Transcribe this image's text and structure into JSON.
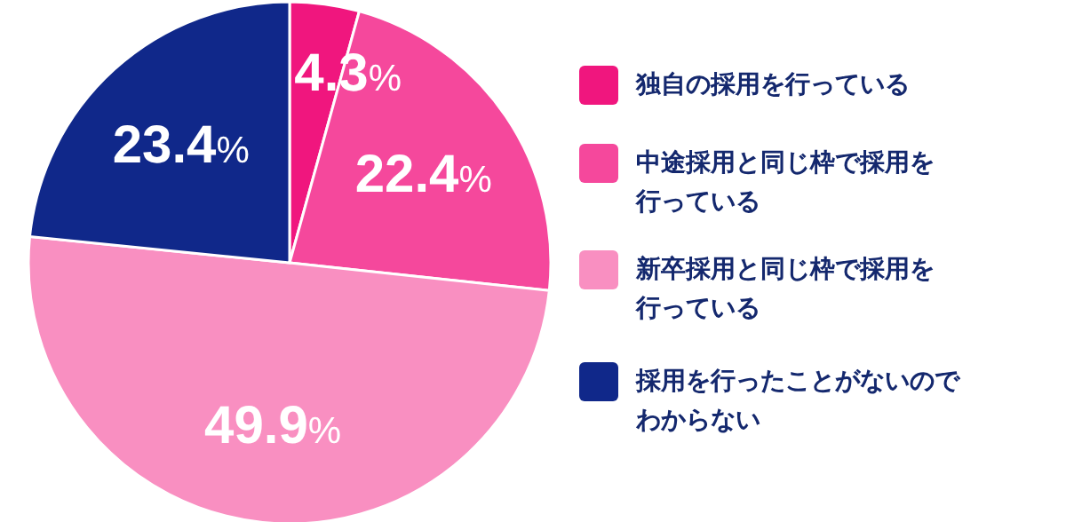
{
  "chart_data": {
    "type": "pie",
    "categories": [
      "独自の採用を行っている",
      "中途採用と同じ枠で採用を行っている",
      "新卒採用と同じ枠で採用を行っている",
      "採用を行ったことがないのでわからない"
    ],
    "values": [
      4.3,
      22.4,
      49.9,
      23.4
    ],
    "value_labels": [
      "4.3%",
      "22.4%",
      "49.9%",
      "23.4%"
    ],
    "colors": [
      "#f0167e",
      "#f5489c",
      "#f98fc1",
      "#10288a"
    ],
    "legend": "right"
  }
}
